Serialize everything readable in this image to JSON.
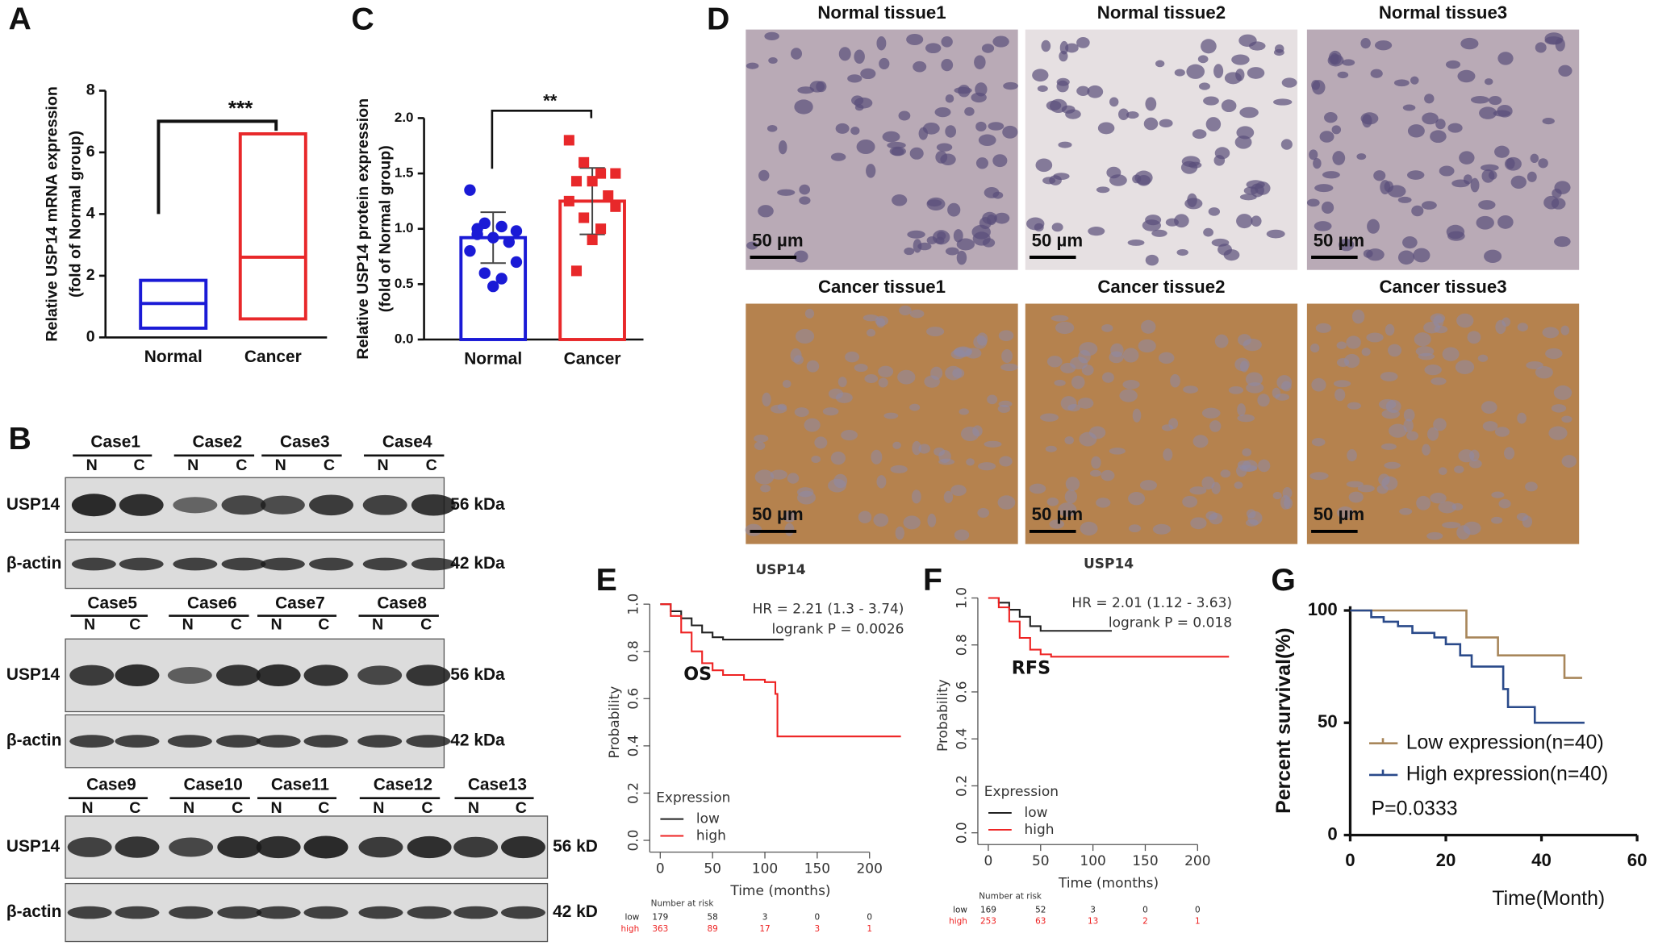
{
  "panel_labels": [
    "A",
    "B",
    "C",
    "D",
    "E",
    "F",
    "G"
  ],
  "chart_data": [
    {
      "type": "floating_bar",
      "ylabel": [
        "Relative USP14 mRNA expression",
        "(fold of Normal group)"
      ],
      "categories": [
        "Normal",
        "Cancer"
      ],
      "min": [
        0.3,
        0.6
      ],
      "median": [
        1.1,
        2.6
      ],
      "max": [
        1.85,
        6.6
      ],
      "colors": [
        "#1a1ad6",
        "#e8282a"
      ],
      "ylim": [
        0,
        8
      ],
      "yticks": [
        0,
        2,
        4,
        6,
        8
      ],
      "annotation": "***"
    },
    {
      "type": "bar",
      "ylabel": [
        "Relative USP14 protein expression",
        "(fold of Normal group)"
      ],
      "categories": [
        "Normal",
        "Cancer"
      ],
      "values": [
        0.92,
        1.25
      ],
      "errors": [
        0.23,
        0.3
      ],
      "points": [
        [
          1.35,
          1.05,
          1.02,
          0.98,
          0.95,
          0.92,
          0.88,
          0.8,
          0.7,
          0.6,
          0.55,
          0.48,
          1.0
        ],
        [
          1.8,
          1.6,
          1.5,
          1.5,
          1.43,
          1.43,
          1.3,
          1.25,
          1.2,
          1.1,
          1.0,
          0.9,
          0.62
        ]
      ],
      "colors": [
        "#1a1ad6",
        "#e8282a"
      ],
      "ylim": [
        0,
        2
      ],
      "yticks": [
        {
          "value": 0,
          "label": "0.0"
        },
        {
          "value": 0.5,
          "label": "0.5"
        },
        {
          "value": 1,
          "label": "1.0"
        },
        {
          "value": 1.5,
          "label": "1.5"
        },
        {
          "value": 2,
          "label": "2.0"
        }
      ],
      "annotation": "**"
    },
    {
      "type": "km",
      "title": "USP14",
      "annotations": [
        "HR = 2.21 (1.3 - 3.74)",
        "logrank P = 0.0026",
        "OS"
      ],
      "xlabel": "Time (months)",
      "ylabel": "Probability",
      "legend_title": "Expression",
      "series": [
        {
          "name": "low",
          "color": "#222222",
          "x": [
            0,
            10,
            20,
            30,
            40,
            50,
            60,
            80,
            100,
            118
          ],
          "values": [
            1,
            0.97,
            0.94,
            0.91,
            0.88,
            0.86,
            0.85,
            0.85,
            0.85,
            0.85
          ]
        },
        {
          "name": "high",
          "color": "#ee2222",
          "x": [
            0,
            10,
            20,
            30,
            40,
            50,
            60,
            80,
            100,
            110,
            112,
            140,
            230
          ],
          "values": [
            1,
            0.95,
            0.88,
            0.8,
            0.75,
            0.72,
            0.7,
            0.68,
            0.67,
            0.62,
            0.44,
            0.44,
            0.44
          ]
        }
      ],
      "xlim": [
        -10,
        240
      ],
      "xticks": [
        0,
        50,
        100,
        150,
        200
      ],
      "ylim": [
        -0.05,
        1.05
      ],
      "yticks": [
        {
          "value": 0,
          "label": "0.0"
        },
        {
          "value": 0.2,
          "label": "0.2"
        },
        {
          "value": 0.4,
          "label": "0.4"
        },
        {
          "value": 0.6,
          "label": "0.6"
        },
        {
          "value": 0.8,
          "label": "0.8"
        },
        {
          "value": 1,
          "label": "1.0"
        }
      ],
      "risk_table": {
        "title": "Number at risk",
        "rows": [
          {
            "name": "low",
            "values": [
              179,
              58,
              3,
              0,
              0
            ]
          },
          {
            "name": "high",
            "values": [
              363,
              89,
              17,
              3,
              1
            ]
          }
        ]
      }
    },
    {
      "type": "km",
      "title": "USP14",
      "annotations": [
        "HR = 2.01 (1.12 - 3.63)",
        "logrank P = 0.018",
        "RFS"
      ],
      "xlabel": "Time (months)",
      "ylabel": "Probability",
      "legend_title": "Expression",
      "series": [
        {
          "name": "low",
          "color": "#222222",
          "x": [
            0,
            10,
            20,
            30,
            40,
            50,
            60,
            80,
            118
          ],
          "values": [
            1,
            0.98,
            0.95,
            0.92,
            0.88,
            0.86,
            0.86,
            0.86,
            0.86
          ]
        },
        {
          "name": "high",
          "color": "#ee2222",
          "x": [
            0,
            10,
            20,
            30,
            40,
            50,
            60,
            100,
            230
          ],
          "values": [
            1,
            0.96,
            0.9,
            0.83,
            0.78,
            0.76,
            0.75,
            0.75,
            0.75
          ]
        }
      ],
      "xlim": [
        -10,
        240
      ],
      "xticks": [
        0,
        50,
        100,
        150,
        200
      ],
      "ylim": [
        -0.05,
        1.05
      ],
      "yticks": [
        {
          "value": 0,
          "label": "0.0"
        },
        {
          "value": 0.2,
          "label": "0.2"
        },
        {
          "value": 0.4,
          "label": "0.4"
        },
        {
          "value": 0.6,
          "label": "0.6"
        },
        {
          "value": 0.8,
          "label": "0.8"
        },
        {
          "value": 1,
          "label": "1.0"
        }
      ],
      "risk_table": {
        "title": "Number at risk",
        "rows": [
          {
            "name": "low",
            "values": [
              169,
              52,
              3,
              0,
              0
            ]
          },
          {
            "name": "high",
            "values": [
              253,
              63,
              13,
              2,
              1
            ]
          }
        ]
      }
    },
    {
      "type": "km",
      "annotations": [
        "P=0.0333"
      ],
      "xlabel": "Time(Month)",
      "ylabel": "Percent survival(%)",
      "series": [
        {
          "name": "Low expression(n=40)",
          "color": "#a8865a",
          "x": [
            0,
            24.3,
            30.9,
            44.8,
            48.5
          ],
          "values": [
            100,
            88,
            80,
            70,
            70
          ]
        },
        {
          "name": "High expression(n=40)",
          "color": "#2a4a8a",
          "x": [
            0,
            4.4,
            7,
            10,
            13,
            17.6,
            20,
            23,
            25.4,
            32,
            33,
            38.6,
            49
          ],
          "values": [
            100,
            97,
            95,
            93,
            90,
            88,
            85,
            80,
            75,
            65,
            57,
            50,
            50
          ]
        }
      ],
      "xlim": [
        0,
        60
      ],
      "xticks": [
        0,
        20,
        40,
        60
      ],
      "ylim": [
        0,
        100
      ],
      "yticks": [
        0,
        50,
        100
      ]
    }
  ],
  "blots": {
    "proteins": [
      "USP14",
      "β-actin"
    ],
    "groups": [
      {
        "cases": [
          "Case1",
          "Case2",
          "Case3",
          "Case4"
        ],
        "lanes": [
          "N",
          "C",
          "N",
          "C",
          "N",
          "C",
          "N",
          "C"
        ],
        "markers": [
          "56 kDa",
          "42 kDa"
        ]
      },
      {
        "cases": [
          "Case5",
          "Case6",
          "Case7",
          "Case8"
        ],
        "lanes": [
          "N",
          "C",
          "N",
          "C",
          "N",
          "C",
          "N",
          "C"
        ],
        "markers": [
          "56 kDa",
          "42 kDa"
        ]
      },
      {
        "cases": [
          "Case9",
          "Case10",
          "Case11",
          "Case12",
          "Case13"
        ],
        "lanes": [
          "N",
          "C",
          "N",
          "C",
          "N",
          "C",
          "N",
          "C",
          "N",
          "C"
        ],
        "markers": [
          "56 kD",
          "42 kD"
        ]
      }
    ]
  },
  "ihc": {
    "titles": [
      "Normal tissue1",
      "Normal tissue2",
      "Normal tissue3",
      "Cancer tissue1",
      "Cancer tissue2",
      "Cancer tissue3"
    ],
    "scale": "50 µm"
  }
}
